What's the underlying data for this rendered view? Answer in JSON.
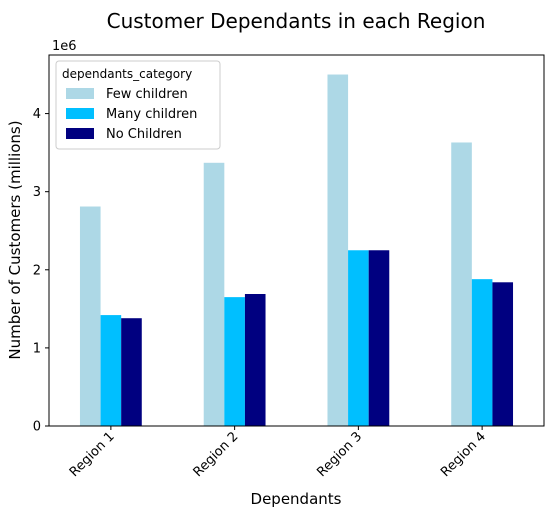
{
  "chart_data": {
    "type": "bar",
    "title": "Customer Dependants in each Region",
    "xlabel": "Dependants",
    "ylabel": "Number of Customers (millions)",
    "offset_label": "1e6",
    "categories": [
      "Region 1",
      "Region 2",
      "Region 3",
      "Region 4"
    ],
    "ylim": [
      0,
      4.75
    ],
    "yticks": [
      "0",
      "1",
      "2",
      "3",
      "4"
    ],
    "legend": {
      "title": "dependants_category",
      "placement": "top-left"
    },
    "grid": false,
    "series": [
      {
        "name": "Few children",
        "color": "#add8e6",
        "values": [
          2.81,
          3.37,
          4.5,
          3.63
        ]
      },
      {
        "name": "Many children",
        "color": "#00bfff",
        "values": [
          1.42,
          1.65,
          2.25,
          1.88
        ]
      },
      {
        "name": "No Children",
        "color": "#000080",
        "values": [
          1.38,
          1.69,
          2.25,
          1.84
        ]
      }
    ]
  }
}
